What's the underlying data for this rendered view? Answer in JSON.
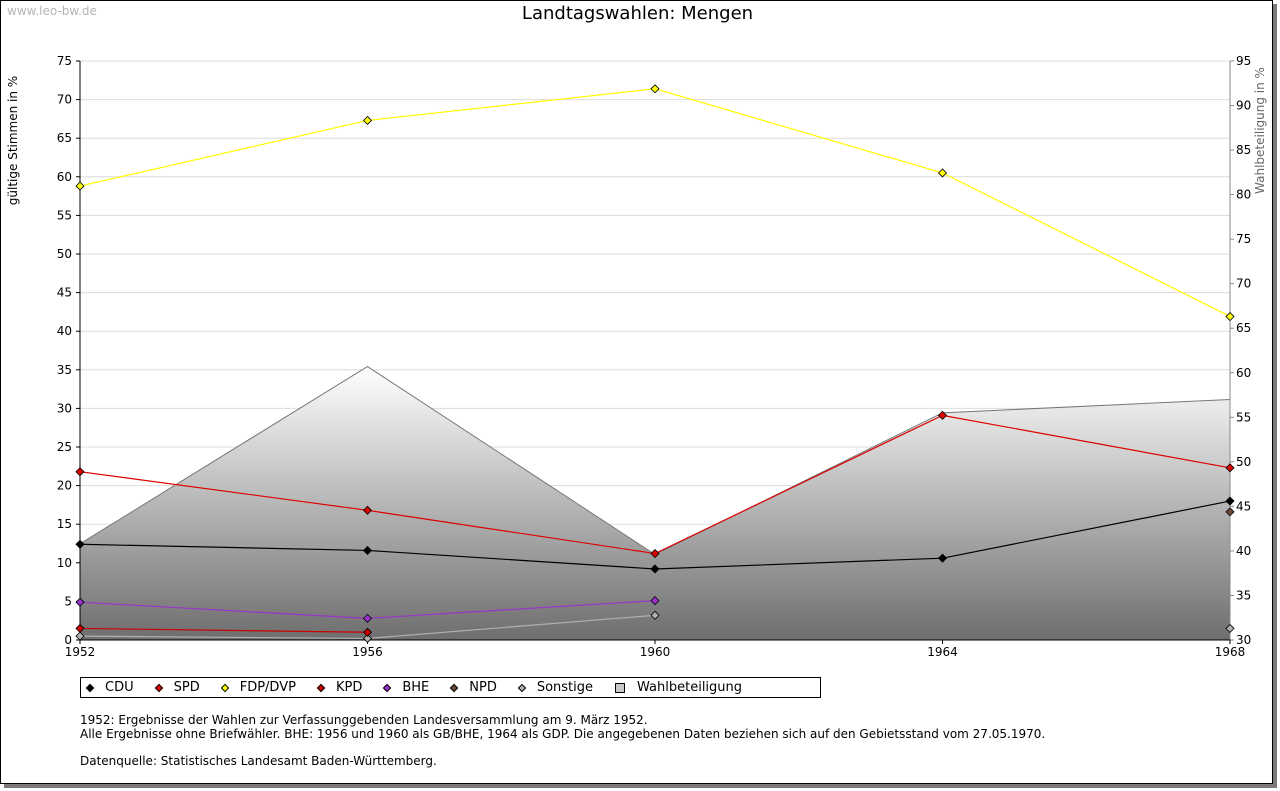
{
  "watermark": "www.leo-bw.de",
  "chart_data": {
    "type": "line",
    "title": "Landtagswahlen: Mengen",
    "ylabel": "gültige Stimmen in %",
    "y2label": "Wahlbeteiligung in %",
    "x": [
      1952,
      1956,
      1960,
      1964,
      1968
    ],
    "ylim": [
      0,
      75
    ],
    "y2lim": [
      30,
      95
    ],
    "yticks": [
      0,
      5,
      10,
      15,
      20,
      25,
      30,
      35,
      40,
      45,
      50,
      55,
      60,
      65,
      70,
      75
    ],
    "y2ticks": [
      30,
      35,
      40,
      45,
      50,
      55,
      60,
      65,
      70,
      75,
      80,
      85,
      90,
      95
    ],
    "grid": true,
    "legend_position": "bottom",
    "series": [
      {
        "name": "CDU",
        "color": "#000000",
        "axis": "left",
        "values": [
          12.4,
          11.6,
          9.2,
          10.6,
          18.0
        ]
      },
      {
        "name": "SPD",
        "color": "#dd0000",
        "axis": "left",
        "values": [
          21.8,
          16.8,
          11.2,
          29.1,
          22.3
        ]
      },
      {
        "name": "FDP/DVP",
        "color": "#ffff00",
        "axis": "left",
        "values": [
          58.8,
          67.3,
          71.4,
          60.5,
          41.9
        ]
      },
      {
        "name": "KPD",
        "color": "#cc0000",
        "axis": "left",
        "values": [
          1.5,
          1.0,
          null,
          null,
          null
        ]
      },
      {
        "name": "BHE",
        "color": "#9933cc",
        "axis": "left",
        "values": [
          4.9,
          2.8,
          5.1,
          null,
          null
        ]
      },
      {
        "name": "NPD",
        "color": "#6b4a3a",
        "axis": "left",
        "values": [
          null,
          null,
          null,
          null,
          16.6
        ]
      },
      {
        "name": "Sonstige",
        "color": "#b0b0b0",
        "axis": "left",
        "values": [
          0.5,
          0.2,
          3.2,
          null,
          1.5
        ]
      },
      {
        "name": "Wahlbeteiligung",
        "color": "#888888",
        "axis": "right",
        "type": "area",
        "values": [
          40.8,
          60.7,
          39.6,
          55.5,
          57.0
        ]
      }
    ]
  },
  "legend": [
    {
      "label": "CDU",
      "color": "#000000",
      "shape": "diamond"
    },
    {
      "label": "SPD",
      "color": "#dd0000",
      "shape": "diamond"
    },
    {
      "label": "FDP/DVP",
      "color": "#ffff00",
      "shape": "diamond"
    },
    {
      "label": "KPD",
      "color": "#cc0000",
      "shape": "diamond"
    },
    {
      "label": "BHE",
      "color": "#9933cc",
      "shape": "diamond"
    },
    {
      "label": "NPD",
      "color": "#6b4a3a",
      "shape": "diamond"
    },
    {
      "label": "Sonstige",
      "color": "#b0b0b0",
      "shape": "diamond"
    },
    {
      "label": "Wahlbeteiligung",
      "color": "#c8c8c8",
      "shape": "square"
    }
  ],
  "notes": [
    "1952: Ergebnisse der Wahlen zur Verfassunggebenden Landesversammlung am 9. März 1952.",
    "Alle Ergebnisse ohne Briefwähler. BHE: 1956 und 1960 als GB/BHE, 1964 als GDP. Die angegebenen Daten beziehen sich auf den Gebietsstand vom 27.05.1970."
  ],
  "source": "Datenquelle: Statistisches Landesamt Baden-Württemberg."
}
